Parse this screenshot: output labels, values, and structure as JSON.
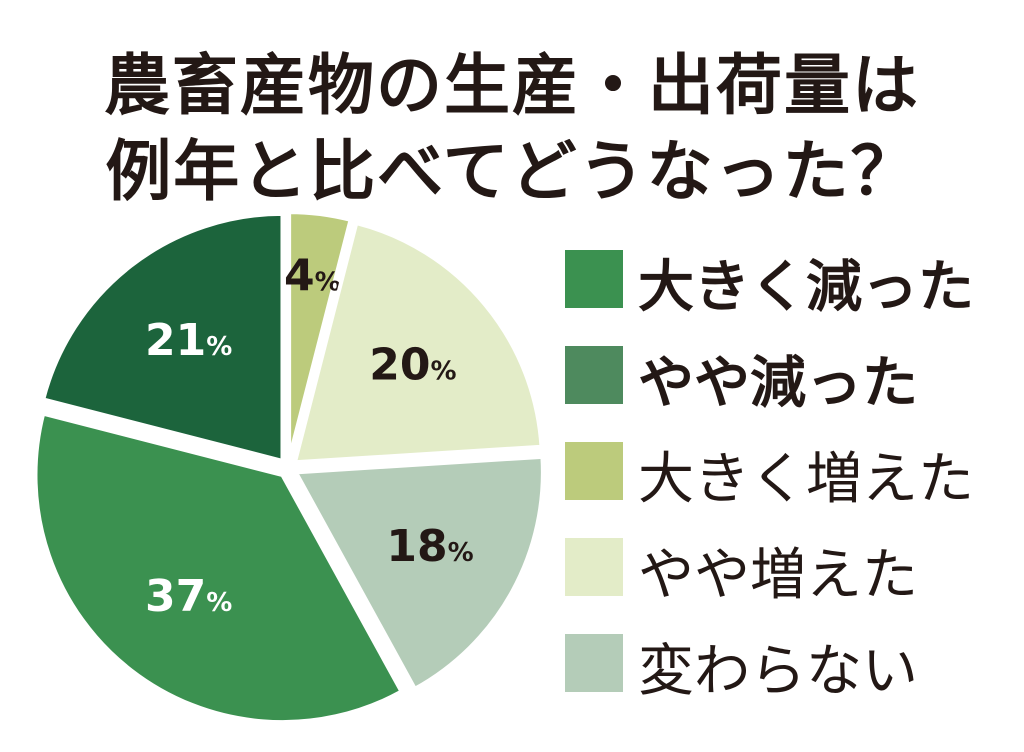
{
  "chart_data": {
    "type": "pie",
    "title_line1": "農畜産物の生産・出荷量は",
    "title_line2": "例年と比べてどうなった？",
    "slices": [
      {
        "label": "大きく減った",
        "value": 37,
        "color": "#3b9150",
        "text_color": "#ffffff",
        "label_bold": true
      },
      {
        "label": "やや減った",
        "value": 21,
        "color": "#1c643c",
        "text_color": "#ffffff",
        "label_bold": true
      },
      {
        "label": "大きく増えた",
        "value": 4,
        "color": "#bccb7c",
        "text_color": "#231815",
        "label_bold": false
      },
      {
        "label": "やや増えた",
        "value": 20,
        "color": "#e3ecc8",
        "text_color": "#231815",
        "label_bold": false
      },
      {
        "label": "変わらない",
        "value": 18,
        "color": "#b4ccb8",
        "text_color": "#231815",
        "label_bold": false
      }
    ],
    "legend_swatch_colors": [
      "#3b9150",
      "#4e8a5e",
      "#bccb7c",
      "#e3ecc8",
      "#b4ccb8"
    ],
    "unit": "%"
  }
}
